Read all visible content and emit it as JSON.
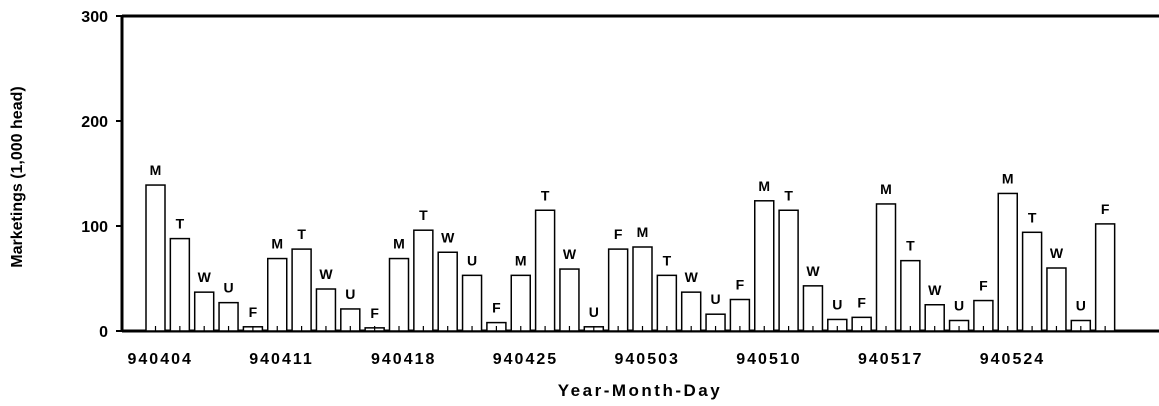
{
  "chart_data": {
    "type": "bar",
    "ylabel": "Marketings (1,000 head)",
    "xlabel": "Year-Month-Day",
    "ylim": [
      0,
      300
    ],
    "yticks": [
      0,
      100,
      200,
      300
    ],
    "xtick_labels": [
      {
        "label": "940404",
        "bar_index": 0
      },
      {
        "label": "940411",
        "bar_index": 5
      },
      {
        "label": "940418",
        "bar_index": 10
      },
      {
        "label": "940425",
        "bar_index": 15
      },
      {
        "label": "940503",
        "bar_index": 20
      },
      {
        "label": "940510",
        "bar_index": 25
      },
      {
        "label": "940517",
        "bar_index": 30
      },
      {
        "label": "940524",
        "bar_index": 35
      }
    ],
    "bars": [
      {
        "day": "M",
        "value": 139
      },
      {
        "day": "T",
        "value": 88
      },
      {
        "day": "W",
        "value": 37
      },
      {
        "day": "U",
        "value": 27
      },
      {
        "day": "F",
        "value": 4
      },
      {
        "day": "M",
        "value": 69
      },
      {
        "day": "T",
        "value": 78
      },
      {
        "day": "W",
        "value": 40
      },
      {
        "day": "U",
        "value": 21
      },
      {
        "day": "F",
        "value": 3
      },
      {
        "day": "M",
        "value": 69
      },
      {
        "day": "T",
        "value": 96
      },
      {
        "day": "W",
        "value": 75
      },
      {
        "day": "U",
        "value": 53
      },
      {
        "day": "F",
        "value": 8
      },
      {
        "day": "M",
        "value": 53
      },
      {
        "day": "T",
        "value": 115
      },
      {
        "day": "W",
        "value": 59
      },
      {
        "day": "U",
        "value": 4
      },
      {
        "day": "F",
        "value": 78
      },
      {
        "day": "M",
        "value": 80
      },
      {
        "day": "T",
        "value": 53
      },
      {
        "day": "W",
        "value": 37
      },
      {
        "day": "U",
        "value": 16
      },
      {
        "day": "F",
        "value": 30
      },
      {
        "day": "M",
        "value": 124
      },
      {
        "day": "T",
        "value": 115
      },
      {
        "day": "W",
        "value": 43
      },
      {
        "day": "U",
        "value": 11
      },
      {
        "day": "F",
        "value": 13
      },
      {
        "day": "M",
        "value": 121
      },
      {
        "day": "T",
        "value": 67
      },
      {
        "day": "W",
        "value": 25
      },
      {
        "day": "U",
        "value": 10
      },
      {
        "day": "F",
        "value": 29
      },
      {
        "day": "M",
        "value": 131
      },
      {
        "day": "T",
        "value": 94
      },
      {
        "day": "W",
        "value": 60
      },
      {
        "day": "U",
        "value": 10
      },
      {
        "day": "F",
        "value": 102
      }
    ],
    "grid": false,
    "legend": "none",
    "colors": {
      "bar_fill": "#ffffff",
      "bar_stroke": "#000000",
      "axis": "#000000"
    }
  }
}
